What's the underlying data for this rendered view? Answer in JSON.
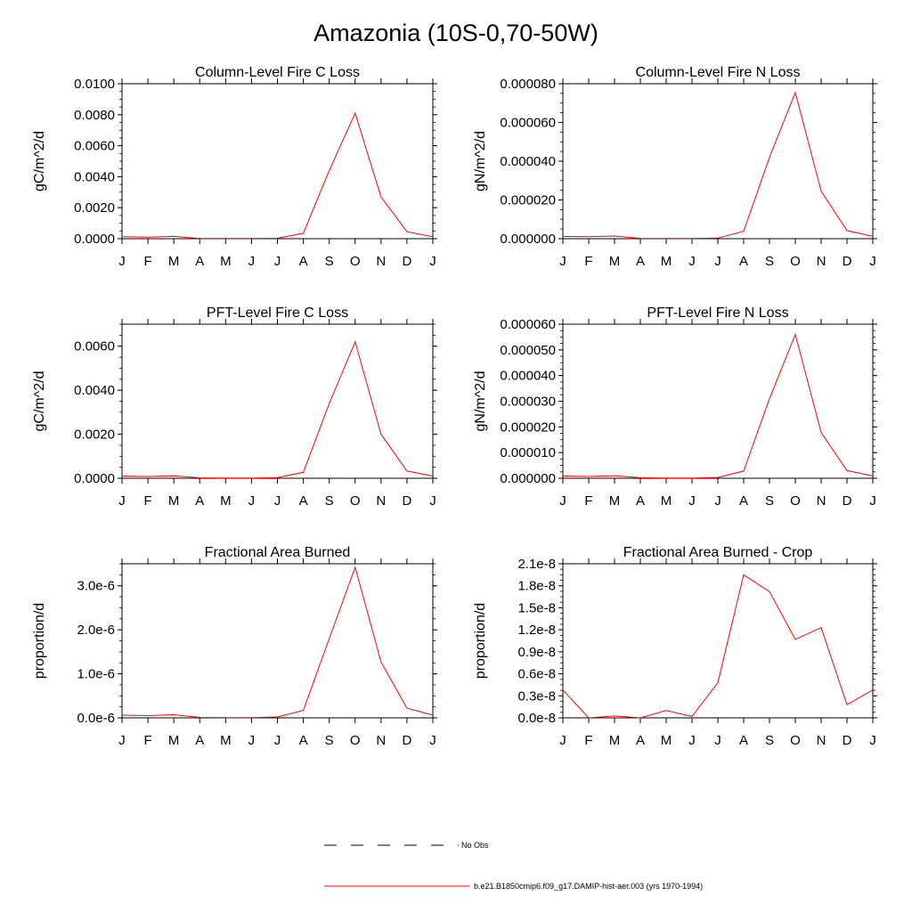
{
  "page": {
    "title": "Amazonia (10S-0,70-50W)"
  },
  "legend": {
    "items": [
      {
        "label": "No Obs",
        "style": "dashed",
        "color": "#000000"
      },
      {
        "label": "b.e21.B1850cmip6.f09_g17.DAMIP-hist-aer.003 (yrs 1970-1994)",
        "style": "solid",
        "color": "#ff0000"
      }
    ]
  },
  "chart_data": [
    {
      "type": "line",
      "title": "Column-Level Fire C Loss",
      "ylabel": "gC/m^2/d",
      "categories": [
        "J",
        "F",
        "M",
        "A",
        "M",
        "J",
        "J",
        "A",
        "S",
        "O",
        "N",
        "D",
        "J"
      ],
      "ylim": [
        0,
        0.01
      ],
      "yticks": [
        0.0,
        0.002,
        0.004,
        0.006,
        0.008,
        0.01
      ],
      "yticklabels": [
        "0.0000",
        "0.0020",
        "0.0040",
        "0.0060",
        "0.0080",
        "0.0100"
      ],
      "series": [
        {
          "color": "#ff0000",
          "values": [
            0.00013,
            0.0001,
            0.00015,
            2e-05,
            1e-05,
            1e-05,
            3e-05,
            0.00035,
            0.0044,
            0.0081,
            0.0027,
            0.00045,
            0.00013
          ]
        }
      ]
    },
    {
      "type": "line",
      "title": "Column-Level Fire N Loss",
      "ylabel": "gN/m^2/d",
      "categories": [
        "J",
        "F",
        "M",
        "A",
        "M",
        "J",
        "J",
        "A",
        "S",
        "O",
        "N",
        "D",
        "J"
      ],
      "ylim": [
        0,
        8e-05
      ],
      "yticks": [
        0.0,
        2e-05,
        4e-05,
        6e-05,
        8e-05
      ],
      "yticklabels": [
        "0.000000",
        "0.000020",
        "0.000040",
        "0.000060",
        "0.000080"
      ],
      "series": [
        {
          "color": "#ff0000",
          "values": [
            1.2e-06,
            1e-06,
            1.4e-06,
            2e-07,
            1e-07,
            1e-07,
            3e-07,
            3.8e-06,
            4.2e-05,
            7.55e-05,
            2.45e-05,
            4.2e-06,
            1.2e-06
          ]
        }
      ]
    },
    {
      "type": "line",
      "title": "PFT-Level Fire C Loss",
      "ylabel": "gC/m^2/d",
      "categories": [
        "J",
        "F",
        "M",
        "A",
        "M",
        "J",
        "J",
        "A",
        "S",
        "O",
        "N",
        "D",
        "J"
      ],
      "ylim": [
        0,
        0.007
      ],
      "yticks": [
        0.0,
        0.002,
        0.004,
        0.006
      ],
      "yticklabels": [
        "0.0000",
        "0.0020",
        "0.0040",
        "0.0060"
      ],
      "series": [
        {
          "color": "#ff0000",
          "values": [
            0.0001,
            8e-05,
            0.00011,
            2e-05,
            1e-05,
            1e-05,
            3e-05,
            0.00027,
            0.0034,
            0.0062,
            0.002,
            0.00033,
            0.0001
          ]
        }
      ]
    },
    {
      "type": "line",
      "title": "PFT-Level Fire N Loss",
      "ylabel": "gN/m^2/d",
      "categories": [
        "J",
        "F",
        "M",
        "A",
        "M",
        "J",
        "J",
        "A",
        "S",
        "O",
        "N",
        "D",
        "J"
      ],
      "ylim": [
        0,
        6e-05
      ],
      "yticks": [
        0.0,
        1e-05,
        2e-05,
        3e-05,
        4e-05,
        5e-05,
        6e-05
      ],
      "yticklabels": [
        "0.000000",
        "0.000010",
        "0.000020",
        "0.000030",
        "0.000040",
        "0.000050",
        "0.000060"
      ],
      "series": [
        {
          "color": "#ff0000",
          "values": [
            9e-07,
            7e-07,
            1e-06,
            2e-07,
            1e-07,
            1e-07,
            3e-07,
            2.8e-06,
            3.1e-05,
            5.6e-05,
            1.78e-05,
            3e-06,
            9e-07
          ]
        }
      ]
    },
    {
      "type": "line",
      "title": "Fractional Area Burned",
      "ylabel": "proportion/d",
      "categories": [
        "J",
        "F",
        "M",
        "A",
        "M",
        "J",
        "J",
        "A",
        "S",
        "O",
        "N",
        "D",
        "J"
      ],
      "ylim": [
        0,
        3.5e-06
      ],
      "yticks": [
        0.0,
        1e-06,
        2e-06,
        3e-06
      ],
      "yticklabels": [
        "0.0e-6",
        "1.0e-6",
        "2.0e-6",
        "3.0e-6"
      ],
      "series": [
        {
          "color": "#ff0000",
          "values": [
            6e-08,
            5e-08,
            7e-08,
            1e-08,
            5e-09,
            5e-09,
            2e-08,
            1.7e-07,
            1.8e-06,
            3.42e-06,
            1.27e-06,
            2.2e-07,
            6e-08
          ]
        }
      ]
    },
    {
      "type": "line",
      "title": "Fractional Area Burned - Crop",
      "ylabel": "proportion/d",
      "categories": [
        "J",
        "F",
        "M",
        "A",
        "M",
        "J",
        "J",
        "A",
        "S",
        "O",
        "N",
        "D",
        "J"
      ],
      "ylim": [
        0,
        2.1e-08
      ],
      "yticks": [
        0.0,
        3e-09,
        6e-09,
        9e-09,
        1.2e-08,
        1.5e-08,
        1.8e-08,
        2.1e-08
      ],
      "yticklabels": [
        "0.0e-8",
        "0.3e-8",
        "0.6e-8",
        "0.9e-8",
        "1.2e-8",
        "1.5e-8",
        "1.8e-8",
        "2.1e-8"
      ],
      "series": [
        {
          "color": "#ff0000",
          "values": [
            3.8e-09,
            0.0,
            2.5e-10,
            0.0,
            1e-09,
            2e-10,
            4.8e-09,
            1.95e-08,
            1.72e-08,
            1.07e-08,
            1.23e-08,
            1.8e-09,
            3.8e-09
          ]
        }
      ]
    }
  ]
}
